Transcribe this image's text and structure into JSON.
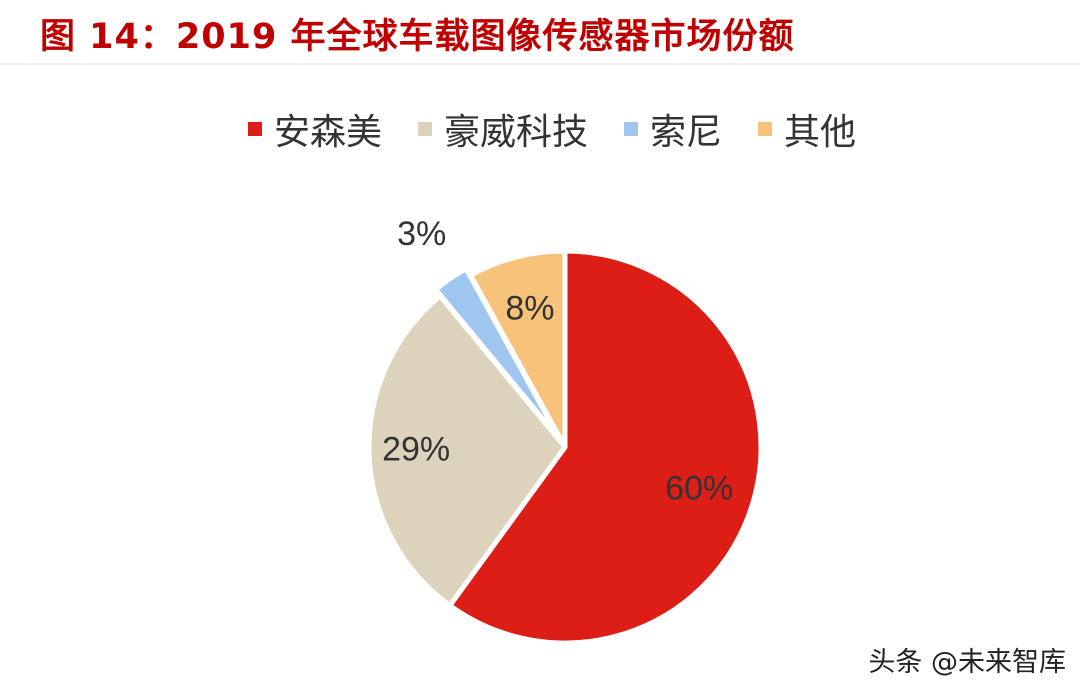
{
  "title": "图 14：2019 年全球车载图像传感器市场份额",
  "legend": [
    {
      "label": "安森美",
      "color": "#dc1e17"
    },
    {
      "label": "豪威科技",
      "color": "#ddd3bd"
    },
    {
      "label": "索尼",
      "color": "#9ec6ee"
    },
    {
      "label": "其他",
      "color": "#f7c27a"
    }
  ],
  "chart_data": {
    "type": "pie",
    "title": "图 14：2019 年全球车载图像传感器市场份额",
    "categories": [
      "安森美",
      "豪威科技",
      "索尼",
      "其他"
    ],
    "values": [
      60,
      29,
      3,
      8
    ],
    "data_labels": [
      "60%",
      "29%",
      "3%",
      "8%"
    ],
    "colors": [
      "#dc1e17",
      "#ddd3bd",
      "#9ec6ee",
      "#f7c27a"
    ],
    "legend_position": "top"
  },
  "watermark": {
    "text": "头条 @未来智库"
  }
}
